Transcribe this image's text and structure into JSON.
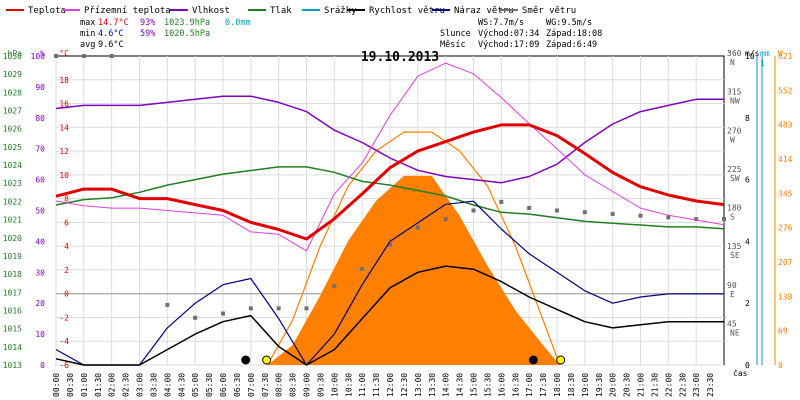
{
  "chart_data": {
    "type": "line",
    "title": "19.10.2013",
    "xlabel": "čas",
    "legend": [
      {
        "name": "Teplota",
        "color": "#e00000"
      },
      {
        "name": "Přízemní teplota",
        "color": "#e040e0"
      },
      {
        "name": "Vlhkost",
        "color": "#8000c0"
      },
      {
        "name": "Tlak",
        "color": "#208020"
      },
      {
        "name": "Srážky",
        "color": "#00a0c0"
      },
      {
        "name": "Rychlost větru",
        "color": "#000000"
      },
      {
        "name": "Náraz větru",
        "color": "#000080"
      },
      {
        "name": "Směr větru",
        "color": "#707070"
      }
    ],
    "stats": {
      "max": {
        "label": "max",
        "temp": "14.7°C",
        "hum": "93%",
        "press": "1023.9hPa",
        "rain": "0.0mm"
      },
      "min": {
        "label": "min",
        "temp": "4.6°C",
        "hum": "59%",
        "press": "1020.5hPa"
      },
      "avg": {
        "label": "avg",
        "temp": "9.6°C"
      }
    },
    "wind_info": {
      "ws": "WS:7.7m/s",
      "wg": "WG:9.5m/s"
    },
    "sun": {
      "label": "Slunce",
      "rise": "Východ:07:34",
      "set": "Západ:18:08"
    },
    "moon": {
      "label": "Měsíc",
      "rise": "Východ:17:09",
      "set": "Západ:6:49"
    },
    "axes": {
      "hpa": {
        "unit": "hPa",
        "ticks": [
          "1030",
          "1029",
          "1028",
          "1027",
          "1026",
          "1025",
          "1024",
          "1023",
          "1022",
          "1021",
          "1020",
          "1019",
          "1018",
          "1017",
          "1016",
          "1015",
          "1014",
          "1013"
        ],
        "range": [
          1013,
          1030
        ]
      },
      "humidity": {
        "unit": "%",
        "ticks": [
          "100",
          "90",
          "80",
          "70",
          "60",
          "50",
          "40",
          "30",
          "20",
          "10",
          "0"
        ],
        "range": [
          0,
          100
        ]
      },
      "temp": {
        "unit": "°C",
        "ticks": [
          "18",
          "16",
          "14",
          "12",
          "10",
          "8",
          "6",
          "4",
          "2",
          "0",
          "-2",
          "-4",
          "-6"
        ],
        "range": [
          -6,
          20
        ]
      },
      "direction": {
        "unit": "°",
        "ticks": [
          {
            "v": "360",
            "l": "N"
          },
          {
            "v": "315",
            "l": "NW"
          },
          {
            "v": "270",
            "l": "W"
          },
          {
            "v": "225",
            "l": "SW"
          },
          {
            "v": "180",
            "l": "S"
          },
          {
            "v": "135",
            "l": "SE"
          },
          {
            "v": "90",
            "l": "E"
          },
          {
            "v": "45",
            "l": "NE"
          }
        ],
        "range": [
          0,
          360
        ]
      },
      "wind": {
        "unit": "m/s",
        "ticks": [
          "10",
          "8",
          "6",
          "4",
          "2",
          "0"
        ],
        "range": [
          0,
          10
        ]
      },
      "rain": {
        "unit": "mm",
        "ticks": [
          "1"
        ],
        "range": [
          0,
          1
        ]
      },
      "solar": {
        "unit": "W",
        "ticks": [
          "621",
          "552",
          "483",
          "414",
          "345",
          "276",
          "207",
          "138",
          "69",
          "0"
        ],
        "range": [
          0,
          621
        ]
      },
      "x_ticks": [
        "00:00",
        "00:30",
        "01:00",
        "01:30",
        "02:00",
        "02:30",
        "03:00",
        "03:30",
        "04:00",
        "04:30",
        "05:00",
        "05:30",
        "06:00",
        "06:30",
        "07:00",
        "07:30",
        "08:00",
        "08:30",
        "09:00",
        "09:30",
        "10:00",
        "10:30",
        "11:00",
        "11:30",
        "12:00",
        "12:30",
        "13:00",
        "13:30",
        "14:00",
        "14:30",
        "15:00",
        "15:30",
        "16:00",
        "16:30",
        "17:00",
        "17:30",
        "18:00",
        "18:30",
        "19:00",
        "19:30",
        "20:00",
        "20:30",
        "21:00",
        "21:30",
        "22:00",
        "22:30",
        "23:00",
        "23:30"
      ]
    },
    "series": [
      {
        "name": "Teplota",
        "axis": "temp",
        "x": [
          0,
          1,
          2,
          3,
          4,
          5,
          6,
          7,
          8,
          9,
          10,
          11,
          12,
          13,
          14,
          15,
          16,
          17,
          18,
          19,
          20,
          21,
          22,
          23,
          24
        ],
        "values": [
          8.2,
          8.8,
          8.8,
          8.0,
          8.0,
          7.5,
          7.0,
          6.0,
          5.4,
          4.6,
          6.3,
          8.4,
          10.6,
          12.0,
          12.8,
          13.6,
          14.2,
          14.2,
          13.3,
          11.8,
          10.2,
          9.0,
          8.3,
          7.8,
          7.5
        ]
      },
      {
        "name": "Přízemní teplota",
        "axis": "temp",
        "x": [
          0,
          1,
          2,
          3,
          4,
          5,
          6,
          7,
          8,
          9,
          10,
          11,
          12,
          13,
          14,
          15,
          16,
          17,
          18,
          19,
          20,
          21,
          22,
          23,
          24
        ],
        "values": [
          7.8,
          7.4,
          7.2,
          7.2,
          7.0,
          6.8,
          6.6,
          5.2,
          5.0,
          3.6,
          8.4,
          11.0,
          15.0,
          18.3,
          19.4,
          18.5,
          16.5,
          14.3,
          12.2,
          10.0,
          8.6,
          7.2,
          6.6,
          6.2,
          5.8
        ]
      },
      {
        "name": "Vlhkost",
        "axis": "humidity",
        "x": [
          0,
          1,
          2,
          3,
          4,
          5,
          6,
          7,
          8,
          9,
          10,
          11,
          12,
          13,
          14,
          15,
          16,
          17,
          18,
          19,
          20,
          21,
          22,
          23,
          24
        ],
        "values": [
          83,
          84,
          84,
          84,
          85,
          86,
          87,
          87,
          85,
          82,
          76,
          72,
          67,
          63,
          61,
          60,
          59,
          61,
          65,
          72,
          78,
          82,
          84,
          86,
          86
        ]
      },
      {
        "name": "Tlak",
        "axis": "hpa",
        "x": [
          0,
          1,
          2,
          3,
          4,
          5,
          6,
          7,
          8,
          9,
          10,
          11,
          12,
          13,
          14,
          15,
          16,
          17,
          18,
          19,
          20,
          21,
          22,
          23,
          24
        ],
        "values": [
          1021.8,
          1022.1,
          1022.2,
          1022.5,
          1022.9,
          1023.2,
          1023.5,
          1023.7,
          1023.9,
          1023.9,
          1023.6,
          1023.1,
          1022.9,
          1022.6,
          1022.3,
          1021.8,
          1021.4,
          1021.3,
          1021.1,
          1020.9,
          1020.8,
          1020.7,
          1020.6,
          1020.6,
          1020.5
        ]
      },
      {
        "name": "Rychlost větru",
        "axis": "wind",
        "x": [
          0,
          1,
          2,
          3,
          4,
          5,
          6,
          7,
          8,
          9,
          10,
          11,
          12,
          13,
          14,
          15,
          16,
          17,
          18,
          19,
          20,
          21,
          22,
          23,
          24
        ],
        "values": [
          0.2,
          0,
          0,
          0,
          0.5,
          1.0,
          1.4,
          1.6,
          0.6,
          0,
          0.5,
          1.5,
          2.5,
          3.0,
          3.2,
          3.1,
          2.7,
          2.2,
          1.8,
          1.4,
          1.2,
          1.3,
          1.4,
          1.4,
          1.4
        ]
      },
      {
        "name": "Náraz větru",
        "axis": "wind",
        "x": [
          0,
          1,
          2,
          3,
          4,
          5,
          6,
          7,
          8,
          9,
          10,
          11,
          12,
          13,
          14,
          15,
          16,
          17,
          18,
          19,
          20,
          21,
          22,
          23,
          24
        ],
        "values": [
          0.5,
          0,
          0,
          0,
          1.2,
          2.0,
          2.6,
          2.8,
          1.5,
          0,
          1.0,
          2.6,
          4.0,
          4.6,
          5.2,
          5.3,
          4.4,
          3.6,
          3.0,
          2.4,
          2.0,
          2.2,
          2.3,
          2.3,
          2.3
        ]
      },
      {
        "name": "Směr větru",
        "axis": "direction",
        "x": [
          0,
          1,
          2,
          3,
          4,
          5,
          6,
          7,
          8,
          9,
          10,
          11,
          12,
          13,
          14,
          15,
          16,
          17,
          18,
          19,
          20,
          21,
          22,
          23,
          24
        ],
        "values": [
          360,
          360,
          360,
          null,
          70,
          55,
          60,
          66,
          66,
          66,
          92,
          112,
          140,
          160,
          170,
          180,
          190,
          183,
          180,
          178,
          176,
          174,
          172,
          170,
          170
        ]
      },
      {
        "name": "Solar",
        "axis": "solar",
        "x": [
          7.6,
          8.5,
          9.5,
          10.5,
          11.5,
          12.5,
          13.5,
          14.5,
          15.5,
          16.5,
          17.5,
          18.1
        ],
        "values": [
          0,
          40,
          140,
          250,
          330,
          380,
          380,
          300,
          200,
          110,
          40,
          0
        ]
      },
      {
        "name": "Theoretical solar",
        "axis": "solar",
        "x": [
          7.6,
          8.5,
          9.5,
          10.5,
          11.5,
          12.5,
          13.5,
          14.5,
          15.5,
          16.5,
          17.5,
          18.1
        ],
        "values": [
          0,
          90,
          240,
          360,
          430,
          468,
          468,
          430,
          360,
          240,
          90,
          0
        ]
      }
    ]
  }
}
